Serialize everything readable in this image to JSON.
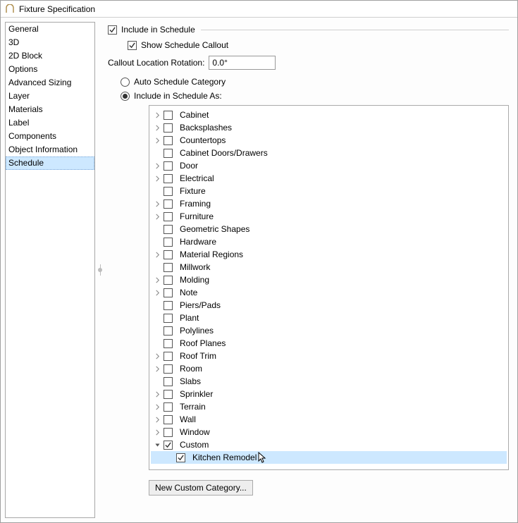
{
  "window": {
    "title": "Fixture Specification"
  },
  "sidebar": {
    "items": [
      {
        "label": "General",
        "selected": false
      },
      {
        "label": "3D",
        "selected": false
      },
      {
        "label": "2D Block",
        "selected": false
      },
      {
        "label": "Options",
        "selected": false
      },
      {
        "label": "Advanced Sizing",
        "selected": false
      },
      {
        "label": "Layer",
        "selected": false
      },
      {
        "label": "Materials",
        "selected": false
      },
      {
        "label": "Label",
        "selected": false
      },
      {
        "label": "Components",
        "selected": false
      },
      {
        "label": "Object Information",
        "selected": false
      },
      {
        "label": "Schedule",
        "selected": true
      }
    ]
  },
  "main": {
    "include_in_schedule": {
      "label": "Include in Schedule",
      "checked": true
    },
    "show_callout": {
      "label": "Show Schedule Callout",
      "checked": true
    },
    "callout_rotation": {
      "label": "Callout Location Rotation:",
      "value": "0.0°"
    },
    "auto_category": {
      "label": "Auto Schedule Category",
      "selected": false
    },
    "include_as": {
      "label": "Include in Schedule As:",
      "selected": true
    },
    "categories": [
      {
        "label": "Cabinet",
        "expander": true,
        "checked": false,
        "level": 0
      },
      {
        "label": "Backsplashes",
        "expander": true,
        "checked": false,
        "level": 0
      },
      {
        "label": "Countertops",
        "expander": true,
        "checked": false,
        "level": 0
      },
      {
        "label": "Cabinet Doors/Drawers",
        "expander": false,
        "checked": false,
        "level": 0
      },
      {
        "label": "Door",
        "expander": true,
        "checked": false,
        "level": 0
      },
      {
        "label": "Electrical",
        "expander": true,
        "checked": false,
        "level": 0
      },
      {
        "label": "Fixture",
        "expander": false,
        "checked": false,
        "level": 0
      },
      {
        "label": "Framing",
        "expander": true,
        "checked": false,
        "level": 0
      },
      {
        "label": "Furniture",
        "expander": true,
        "checked": false,
        "level": 0
      },
      {
        "label": "Geometric Shapes",
        "expander": false,
        "checked": false,
        "level": 0
      },
      {
        "label": "Hardware",
        "expander": false,
        "checked": false,
        "level": 0
      },
      {
        "label": "Material Regions",
        "expander": true,
        "checked": false,
        "level": 0
      },
      {
        "label": "Millwork",
        "expander": false,
        "checked": false,
        "level": 0
      },
      {
        "label": "Molding",
        "expander": true,
        "checked": false,
        "level": 0
      },
      {
        "label": "Note",
        "expander": true,
        "checked": false,
        "level": 0
      },
      {
        "label": "Piers/Pads",
        "expander": false,
        "checked": false,
        "level": 0
      },
      {
        "label": "Plant",
        "expander": false,
        "checked": false,
        "level": 0
      },
      {
        "label": "Polylines",
        "expander": false,
        "checked": false,
        "level": 0
      },
      {
        "label": "Roof Planes",
        "expander": false,
        "checked": false,
        "level": 0
      },
      {
        "label": "Roof Trim",
        "expander": true,
        "checked": false,
        "level": 0
      },
      {
        "label": "Room",
        "expander": true,
        "checked": false,
        "level": 0
      },
      {
        "label": "Slabs",
        "expander": false,
        "checked": false,
        "level": 0
      },
      {
        "label": "Sprinkler",
        "expander": true,
        "checked": false,
        "level": 0
      },
      {
        "label": "Terrain",
        "expander": true,
        "checked": false,
        "level": 0
      },
      {
        "label": "Wall",
        "expander": true,
        "checked": false,
        "level": 0
      },
      {
        "label": "Window",
        "expander": true,
        "checked": false,
        "level": 0
      },
      {
        "label": "Custom",
        "expander": true,
        "expanded": true,
        "checked": true,
        "level": 0
      },
      {
        "label": "Kitchen Remodel",
        "expander": false,
        "checked": true,
        "level": 1,
        "highlight": true,
        "cursor": true
      }
    ],
    "new_category_btn": "New Custom Category..."
  },
  "colors": {
    "selection_bg": "#cde8ff",
    "border": "#a0a0a0",
    "check_color": "#333333"
  }
}
